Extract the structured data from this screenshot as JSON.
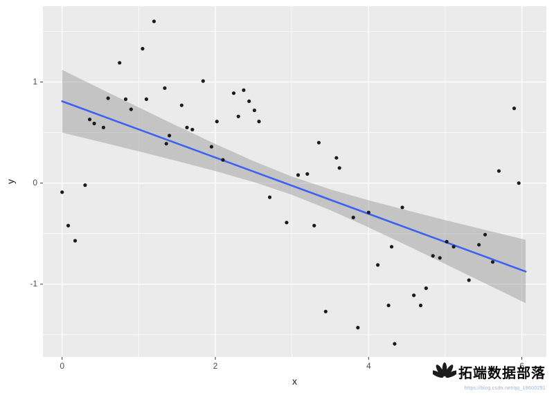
{
  "watermark": {
    "title": "拓端数据部落",
    "url": "https://blog.csdn.net/qq_19600291"
  },
  "chart_data": {
    "type": "scatter",
    "title": "",
    "xlabel": "x",
    "ylabel": "y",
    "xlim": [
      -0.25,
      6.32
    ],
    "ylim": [
      -1.72,
      1.75
    ],
    "x_ticks": [
      0,
      2,
      4,
      6
    ],
    "x_tick_labels": [
      "0",
      "2",
      "4",
      "6"
    ],
    "y_ticks": [
      -1,
      0,
      1
    ],
    "y_tick_labels": [
      "-1",
      "0",
      "1"
    ],
    "x_minor": [
      1,
      3,
      5
    ],
    "y_minor": [
      -1.5,
      -0.5,
      0.5,
      1.5
    ],
    "grid": true,
    "legend": "none",
    "points": [
      [
        0.0,
        -0.09
      ],
      [
        0.08,
        -0.42
      ],
      [
        0.17,
        -0.57
      ],
      [
        0.3,
        -0.02
      ],
      [
        0.36,
        0.63
      ],
      [
        0.42,
        0.59
      ],
      [
        0.54,
        0.55
      ],
      [
        0.6,
        0.84
      ],
      [
        0.75,
        1.19
      ],
      [
        0.83,
        0.83
      ],
      [
        0.9,
        0.73
      ],
      [
        1.05,
        1.33
      ],
      [
        1.1,
        0.83
      ],
      [
        1.2,
        1.6
      ],
      [
        1.34,
        0.94
      ],
      [
        1.36,
        0.39
      ],
      [
        1.4,
        0.47
      ],
      [
        1.56,
        0.77
      ],
      [
        1.63,
        0.55
      ],
      [
        1.7,
        0.53
      ],
      [
        1.84,
        1.01
      ],
      [
        1.95,
        0.36
      ],
      [
        2.02,
        0.61
      ],
      [
        2.1,
        0.23
      ],
      [
        2.24,
        0.89
      ],
      [
        2.3,
        0.66
      ],
      [
        2.37,
        0.92
      ],
      [
        2.44,
        0.81
      ],
      [
        2.51,
        0.72
      ],
      [
        2.57,
        0.61
      ],
      [
        2.71,
        -0.14
      ],
      [
        2.93,
        -0.39
      ],
      [
        3.08,
        0.08
      ],
      [
        3.2,
        0.09
      ],
      [
        3.29,
        -0.42
      ],
      [
        3.35,
        0.4
      ],
      [
        3.44,
        -1.27
      ],
      [
        3.58,
        0.25
      ],
      [
        3.62,
        0.15
      ],
      [
        3.8,
        -0.34
      ],
      [
        3.86,
        -1.43
      ],
      [
        4.0,
        -0.29
      ],
      [
        4.12,
        -0.81
      ],
      [
        4.26,
        -1.21
      ],
      [
        4.3,
        -0.63
      ],
      [
        4.34,
        -1.59
      ],
      [
        4.44,
        -0.24
      ],
      [
        4.59,
        -1.11
      ],
      [
        4.68,
        -1.21
      ],
      [
        4.75,
        -1.04
      ],
      [
        4.84,
        -0.72
      ],
      [
        4.93,
        -0.74
      ],
      [
        5.02,
        -0.58
      ],
      [
        5.11,
        -0.63
      ],
      [
        5.31,
        -0.96
      ],
      [
        5.44,
        -0.61
      ],
      [
        5.52,
        -0.51
      ],
      [
        5.62,
        -0.78
      ],
      [
        5.7,
        0.12
      ],
      [
        5.9,
        0.74
      ],
      [
        5.96,
        0.0
      ]
    ],
    "smooth": {
      "method": "lm",
      "x0": 0.0,
      "y0": 0.81,
      "x1": 6.05,
      "y1": -0.875
    },
    "band": [
      {
        "x": 0.0,
        "lo": 0.5,
        "hi": 1.12
      },
      {
        "x": 0.5,
        "lo": 0.408,
        "hi": 0.934
      },
      {
        "x": 1.0,
        "lo": 0.315,
        "hi": 0.749
      },
      {
        "x": 1.5,
        "lo": 0.218,
        "hi": 0.566
      },
      {
        "x": 2.0,
        "lo": 0.119,
        "hi": 0.387
      },
      {
        "x": 2.5,
        "lo": 0.011,
        "hi": 0.217
      },
      {
        "x": 3.0,
        "lo": -0.116,
        "hi": 0.064
      },
      {
        "x": 3.5,
        "lo": -0.268,
        "hi": -0.062
      },
      {
        "x": 4.0,
        "lo": -0.438,
        "hi": -0.17
      },
      {
        "x": 4.5,
        "lo": -0.617,
        "hi": -0.269
      },
      {
        "x": 5.0,
        "lo": -0.8,
        "hi": -0.366
      },
      {
        "x": 5.5,
        "lo": -0.985,
        "hi": -0.459
      },
      {
        "x": 6.05,
        "lo": -1.188,
        "hi": -0.562
      }
    ],
    "colors": {
      "panel": "#EBEBEB",
      "grid_major": "#FFFFFF",
      "grid_minor": "#FFFFFF",
      "point": "#1b1b1b",
      "band": "#9e9e9e",
      "line": "#3B62F0",
      "axis_text": "#4d4d4d",
      "axis_title": "#1a1a1a",
      "tick": "#333333"
    }
  }
}
